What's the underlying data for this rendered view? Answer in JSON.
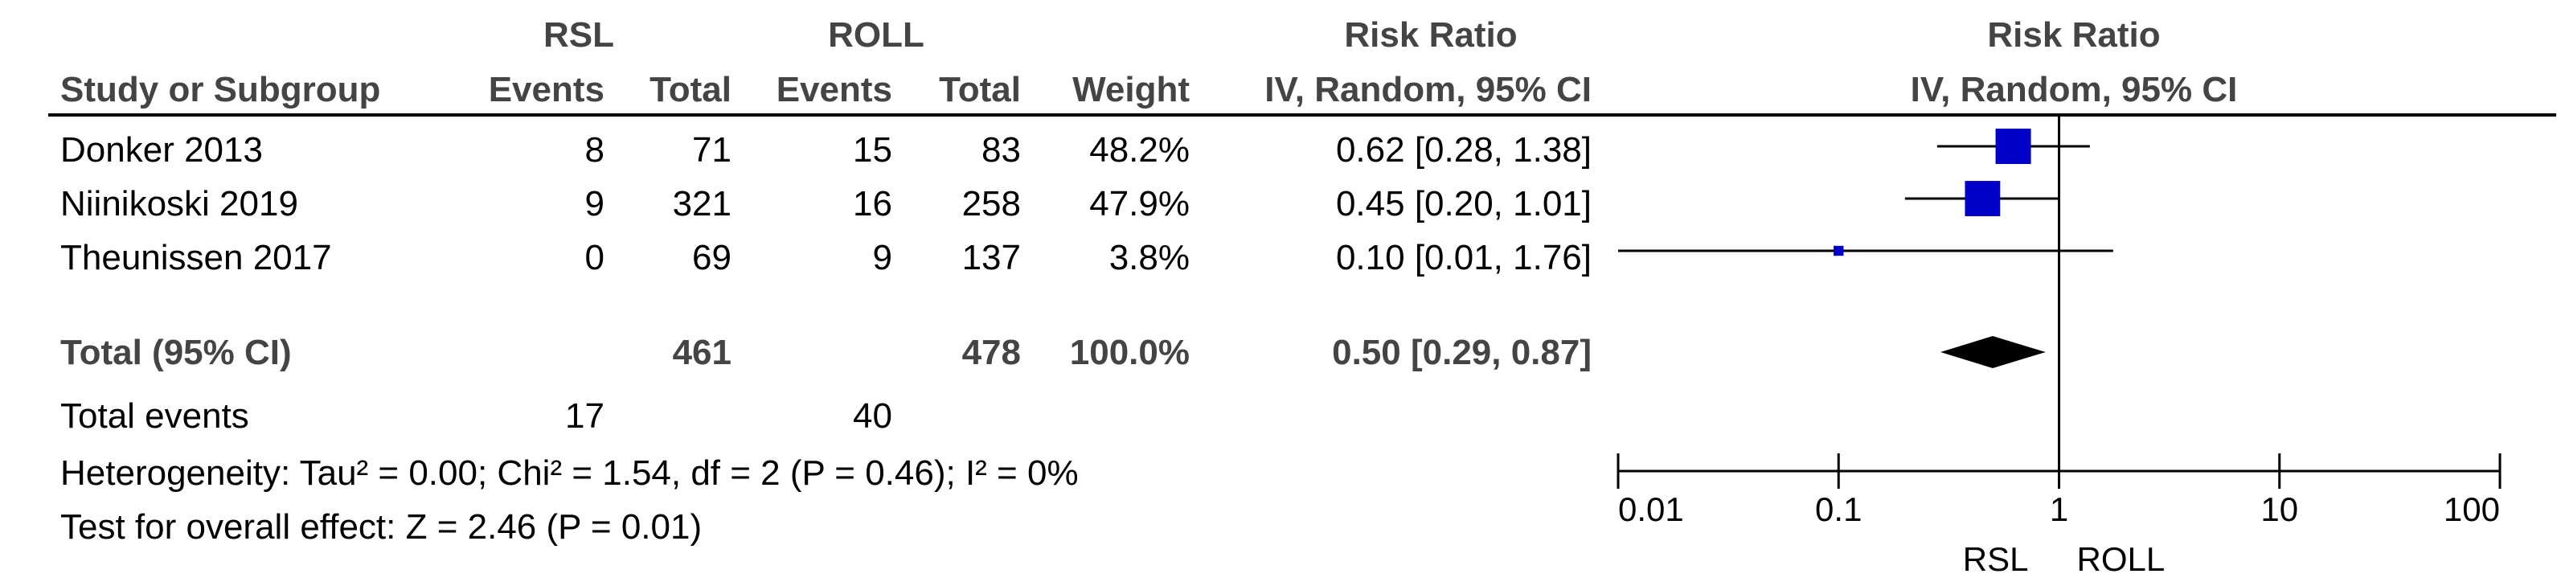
{
  "headers": {
    "group1": "RSL",
    "group2": "ROLL",
    "risk_ratio_table": "Risk Ratio",
    "risk_ratio_plot": "Risk Ratio",
    "study": "Study or Subgroup",
    "events1": "Events",
    "total1": "Total",
    "events2": "Events",
    "total2": "Total",
    "weight": "Weight",
    "ci_table": "IV, Random, 95% CI",
    "ci_plot": "IV, Random, 95% CI"
  },
  "rows": [
    {
      "study": "Donker 2013",
      "events1": "8",
      "total1": "71",
      "events2": "15",
      "total2": "83",
      "weight": "48.2%",
      "ci": "0.62 [0.28, 1.38]"
    },
    {
      "study": "Niinikoski 2019",
      "events1": "9",
      "total1": "321",
      "events2": "16",
      "total2": "258",
      "weight": "47.9%",
      "ci": "0.45 [0.20, 1.01]"
    },
    {
      "study": "Theunissen 2017",
      "events1": "0",
      "total1": "69",
      "events2": "9",
      "total2": "137",
      "weight": "3.8%",
      "ci": "0.10 [0.01, 1.76]"
    }
  ],
  "total": {
    "label": "Total (95% CI)",
    "total1": "461",
    "total2": "478",
    "weight": "100.0%",
    "ci": "0.50 [0.29, 0.87]"
  },
  "events": {
    "label": "Total events",
    "events1": "17",
    "events2": "40"
  },
  "heterogeneity": "Heterogeneity: Tau² = 0.00; Chi² = 1.54, df = 2 (P = 0.46); I² = 0%",
  "overall_effect": "Test for overall effect: Z = 2.46 (P = 0.01)",
  "axis": {
    "ticks": [
      "0.01",
      "0.1",
      "1",
      "10",
      "100"
    ],
    "favours_left": "RSL",
    "favours_right": "ROLL"
  },
  "colors": {
    "square": "#0000c8",
    "diamond": "#000000",
    "header_text": "#444444"
  },
  "chart_data": {
    "type": "forest",
    "scale": "log",
    "xlim": [
      0.01,
      100
    ],
    "null_line": 1,
    "studies": [
      {
        "name": "Donker 2013",
        "rr": 0.62,
        "lower": 0.28,
        "upper": 1.38,
        "weight": 48.2
      },
      {
        "name": "Niinikoski 2019",
        "rr": 0.45,
        "lower": 0.2,
        "upper": 1.01,
        "weight": 47.9
      },
      {
        "name": "Theunissen 2017",
        "rr": 0.1,
        "lower": 0.01,
        "upper": 1.76,
        "weight": 3.8
      }
    ],
    "pooled": {
      "rr": 0.5,
      "lower": 0.29,
      "upper": 0.87
    }
  }
}
